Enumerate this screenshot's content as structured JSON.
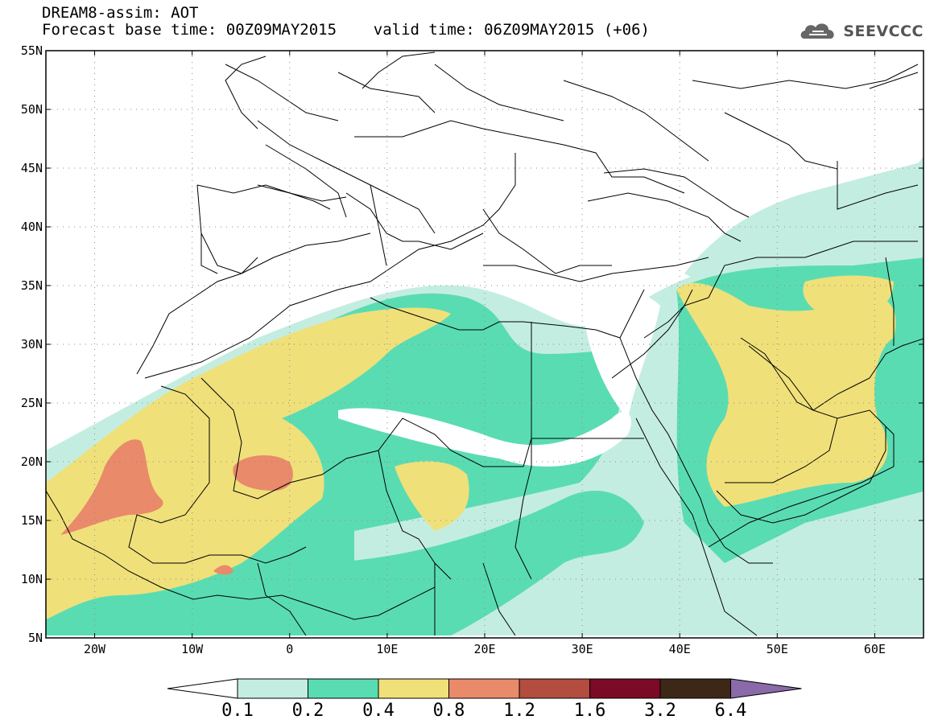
{
  "header": {
    "title": "DREAM8-assim: AOT",
    "subtitle": "Forecast base time: 00Z09MAY2015    valid time: 06Z09MAY2015 (+06)",
    "logo_text": "SEEVCCC"
  },
  "map": {
    "variable": "AOT",
    "lon_range": [
      -25,
      65
    ],
    "lat_range": [
      5,
      55
    ],
    "lon_ticks": [
      {
        "value": -20,
        "label": "20W"
      },
      {
        "value": -10,
        "label": "10W"
      },
      {
        "value": 0,
        "label": "0"
      },
      {
        "value": 10,
        "label": "10E"
      },
      {
        "value": 20,
        "label": "20E"
      },
      {
        "value": 30,
        "label": "30E"
      },
      {
        "value": 40,
        "label": "40E"
      },
      {
        "value": 50,
        "label": "50E"
      },
      {
        "value": 60,
        "label": "60E"
      }
    ],
    "lat_ticks": [
      {
        "value": 5,
        "label": "5N"
      },
      {
        "value": 10,
        "label": "10N"
      },
      {
        "value": 15,
        "label": "15N"
      },
      {
        "value": 20,
        "label": "20N"
      },
      {
        "value": 25,
        "label": "25N"
      },
      {
        "value": 30,
        "label": "30N"
      },
      {
        "value": 35,
        "label": "35N"
      },
      {
        "value": 40,
        "label": "40N"
      },
      {
        "value": 45,
        "label": "45N"
      },
      {
        "value": 50,
        "label": "50N"
      },
      {
        "value": 55,
        "label": "55N"
      }
    ],
    "grid": "dotted",
    "colorbar": {
      "levels": [
        "0.1",
        "0.2",
        "0.4",
        "0.8",
        "1.2",
        "1.6",
        "3.2",
        "6.4"
      ],
      "colors": [
        "#ffffff",
        "#c4ede2",
        "#5adcb3",
        "#f0e07a",
        "#e98a6a",
        "#b24d3f",
        "#7a0a26",
        "#3d2717",
        "#8a6aa8"
      ]
    }
  }
}
